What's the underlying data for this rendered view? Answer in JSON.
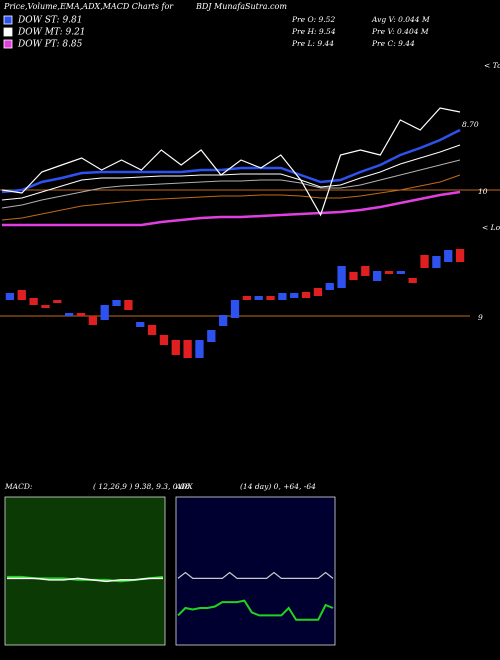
{
  "header": {
    "title": "Price,Volume,EMA,ADX,MACD Charts for",
    "site": "BDJ MunafaSutra.com",
    "legend": [
      {
        "text": "DOW ST: 9.81",
        "color": "#2d52f0"
      },
      {
        "text": "DOW MT: 9.21",
        "color": "#ffffff"
      },
      {
        "text": "DOW PT: 8.85",
        "color": "#e040e0"
      }
    ],
    "stats": [
      "Pre  O: 9.52",
      "Avg V: 0.044  M",
      "Pre  H: 9.54",
      "Pre  V: 0.404  M",
      "Pre  L: 9.44",
      "Pre  C: 9.44"
    ]
  },
  "chart_data": [
    {
      "type": "line",
      "ylim": [
        9.55,
        11.28
      ],
      "yticks": [
        10
      ],
      "grid_color": "#c06a1a",
      "annotations": [
        "8.70",
        "< Tops",
        "< Lows"
      ],
      "series": [
        {
          "color": "#c06a1a",
          "values": [
            9.7,
            9.72,
            9.76,
            9.8,
            9.84,
            9.86,
            9.88,
            9.9,
            9.91,
            9.92,
            9.93,
            9.94,
            9.94,
            9.95,
            9.95,
            9.94,
            9.92,
            9.92,
            9.94,
            9.97,
            10.0,
            10.04,
            10.08,
            10.15
          ]
        },
        {
          "color": "#e040e0",
          "values": [
            9.65,
            9.65,
            9.65,
            9.65,
            9.65,
            9.65,
            9.65,
            9.65,
            9.68,
            9.7,
            9.72,
            9.73,
            9.73,
            9.74,
            9.75,
            9.76,
            9.77,
            9.78,
            9.8,
            9.83,
            9.87,
            9.91,
            9.95,
            9.98
          ]
        },
        {
          "color": "#b0b0b0",
          "values": [
            9.82,
            9.85,
            9.9,
            9.94,
            9.98,
            10.02,
            10.04,
            10.05,
            10.06,
            10.07,
            10.08,
            10.09,
            10.09,
            10.1,
            10.1,
            10.07,
            10.02,
            10.02,
            10.05,
            10.1,
            10.15,
            10.2,
            10.25,
            10.3
          ]
        },
        {
          "color": "#ffffff",
          "values": [
            9.9,
            9.92,
            9.98,
            10.04,
            10.1,
            10.12,
            10.12,
            10.13,
            10.14,
            10.14,
            10.15,
            10.15,
            10.16,
            10.16,
            10.16,
            10.1,
            10.03,
            10.05,
            10.12,
            10.18,
            10.26,
            10.32,
            10.38,
            10.45
          ]
        },
        {
          "color": "#2d52f0",
          "values": [
            9.98,
            10.0,
            10.08,
            10.12,
            10.17,
            10.18,
            10.18,
            10.18,
            10.18,
            10.18,
            10.2,
            10.2,
            10.22,
            10.22,
            10.22,
            10.15,
            10.08,
            10.1,
            10.18,
            10.25,
            10.35,
            10.42,
            10.5,
            10.6
          ]
        },
        {
          "color": "#ffffff",
          "values": [
            10.0,
            9.97,
            10.18,
            10.25,
            10.32,
            10.2,
            10.3,
            10.2,
            10.4,
            10.25,
            10.4,
            10.15,
            10.3,
            10.22,
            10.35,
            10.1,
            9.75,
            10.35,
            10.4,
            10.35,
            10.7,
            10.6,
            10.82,
            10.78
          ]
        }
      ]
    },
    {
      "type": "candlestick",
      "ylim": [
        8.36,
        9.76
      ],
      "yticks": [
        9
      ],
      "grid_color": "#c06a1a",
      "up_color": "#2d52f0",
      "down_color": "#e02020",
      "open": [
        9.16,
        9.26,
        9.18,
        9.11,
        9.16,
        9.0,
        9.03,
        9.0,
        8.96,
        9.1,
        9.16,
        8.89,
        8.91,
        8.81,
        8.76,
        8.76,
        8.58,
        8.74,
        8.9,
        8.98,
        9.2,
        9.16,
        9.2,
        9.16,
        9.18,
        9.24,
        9.28,
        9.26,
        9.28,
        9.44,
        9.5,
        9.35,
        9.45,
        9.42,
        9.38,
        9.61,
        9.48,
        9.54,
        9.67
      ],
      "close": [
        9.23,
        9.16,
        9.11,
        9.08,
        9.13,
        9.03,
        9.0,
        8.91,
        9.11,
        9.16,
        9.06,
        8.94,
        8.81,
        8.71,
        8.61,
        8.58,
        8.76,
        8.86,
        9.01,
        9.16,
        9.16,
        9.2,
        9.16,
        9.23,
        9.23,
        9.18,
        9.2,
        9.33,
        9.5,
        9.36,
        9.4,
        9.45,
        9.42,
        9.45,
        9.33,
        9.48,
        9.6,
        9.66,
        9.54
      ]
    },
    {
      "type": "line",
      "title": "MACD:",
      "subtitle": "( 12,26,9 ) 9.38,  9.3,  0.08",
      "background": "#0b3a05",
      "ylim": [
        8.9,
        9.9
      ],
      "series": [
        {
          "color": "#1fd41f",
          "values": [
            9.36,
            9.36,
            9.35,
            9.35,
            9.35,
            9.34,
            9.34,
            9.34,
            9.33,
            9.34,
            9.35,
            9.36
          ]
        },
        {
          "color": "#ffffff",
          "values": [
            9.35,
            9.35,
            9.35,
            9.34,
            9.34,
            9.35,
            9.34,
            9.33,
            9.34,
            9.34,
            9.35,
            9.35
          ]
        }
      ]
    },
    {
      "type": "line",
      "title": "ADX",
      "subtitle": "(14  day) 0,  +64,  -64",
      "background": "#000030",
      "ylim": [
        0,
        100
      ],
      "series": [
        {
          "color": "#c8c8c8",
          "values": [
            45,
            49,
            45,
            45,
            45,
            45,
            45,
            49,
            45,
            45,
            45,
            45,
            45,
            49,
            45,
            45,
            45,
            45,
            45,
            45,
            49,
            45
          ]
        },
        {
          "color": "#1fd41f",
          "values": [
            20,
            25,
            24,
            25,
            25,
            26,
            29,
            29,
            29,
            30,
            22,
            20,
            20,
            20,
            20,
            25,
            17,
            17,
            17,
            17,
            27,
            25
          ]
        }
      ]
    }
  ]
}
